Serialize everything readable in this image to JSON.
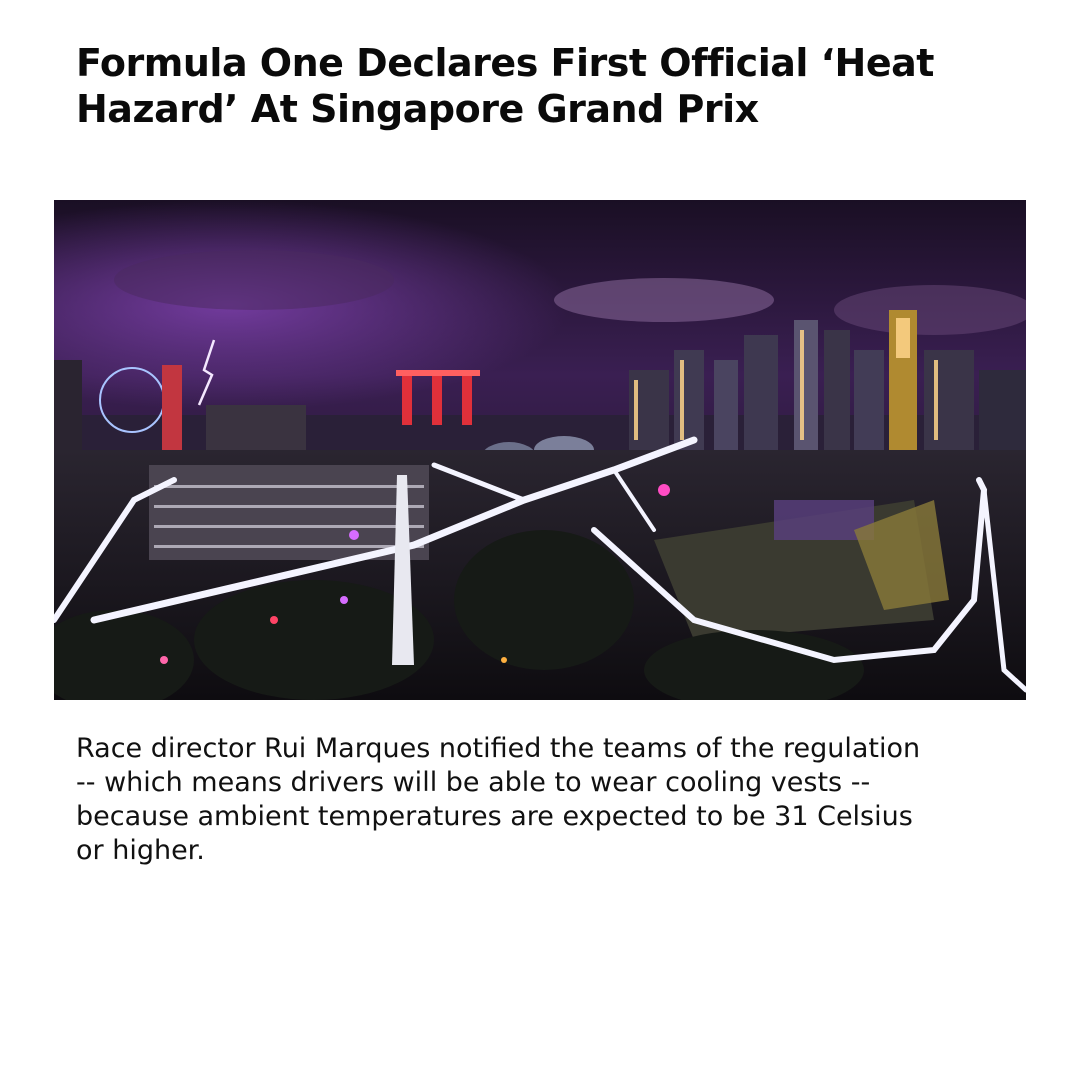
{
  "article": {
    "headline": "Formula One Declares First Official ‘Heat Hazard’ At Singapore Grand Prix",
    "body": "Race director Rui Marques notified the teams of the regulation -- which means drivers will be able to wear cooling vests -- because ambient temperatures are expected to be 31 Celsius or higher."
  },
  "photo": {
    "subject": "singapore-night-circuit-photo",
    "colors": {
      "sky_top": "#1a0f24",
      "sky_glow": "#5a2e7a",
      "city_lights": "#ffd58a",
      "track_light": "#f4f4ff",
      "accent_red": "#e0303a",
      "accent_pink": "#d66cff"
    }
  }
}
